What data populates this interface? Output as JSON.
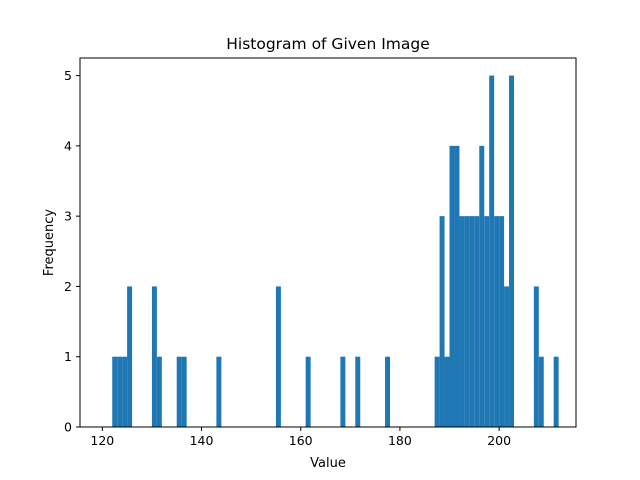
{
  "chart_data": {
    "type": "bar",
    "title": "Histogram of Given Image",
    "xlabel": "Value",
    "ylabel": "Frequency",
    "xlim": [
      115.5,
      215.5
    ],
    "ylim": [
      0,
      5.25
    ],
    "xticks": [
      120,
      140,
      160,
      180,
      200
    ],
    "yticks": [
      0,
      1,
      2,
      3,
      4,
      5
    ],
    "grid": false,
    "bar_color": "#1f77b4",
    "bin_width": 1,
    "bins": [
      {
        "x": 122,
        "count": 1
      },
      {
        "x": 123,
        "count": 1
      },
      {
        "x": 124,
        "count": 1
      },
      {
        "x": 125,
        "count": 2
      },
      {
        "x": 130,
        "count": 2
      },
      {
        "x": 131,
        "count": 1
      },
      {
        "x": 135,
        "count": 1
      },
      {
        "x": 136,
        "count": 1
      },
      {
        "x": 143,
        "count": 1
      },
      {
        "x": 155,
        "count": 2
      },
      {
        "x": 161,
        "count": 1
      },
      {
        "x": 168,
        "count": 1
      },
      {
        "x": 171,
        "count": 1
      },
      {
        "x": 177,
        "count": 1
      },
      {
        "x": 187,
        "count": 1
      },
      {
        "x": 188,
        "count": 3
      },
      {
        "x": 189,
        "count": 1
      },
      {
        "x": 190,
        "count": 4
      },
      {
        "x": 191,
        "count": 4
      },
      {
        "x": 192,
        "count": 3
      },
      {
        "x": 193,
        "count": 3
      },
      {
        "x": 194,
        "count": 3
      },
      {
        "x": 195,
        "count": 3
      },
      {
        "x": 196,
        "count": 4
      },
      {
        "x": 197,
        "count": 3
      },
      {
        "x": 198,
        "count": 5
      },
      {
        "x": 199,
        "count": 3
      },
      {
        "x": 200,
        "count": 3
      },
      {
        "x": 201,
        "count": 2
      },
      {
        "x": 202,
        "count": 5
      },
      {
        "x": 207,
        "count": 2
      },
      {
        "x": 208,
        "count": 1
      },
      {
        "x": 211,
        "count": 1
      }
    ]
  }
}
